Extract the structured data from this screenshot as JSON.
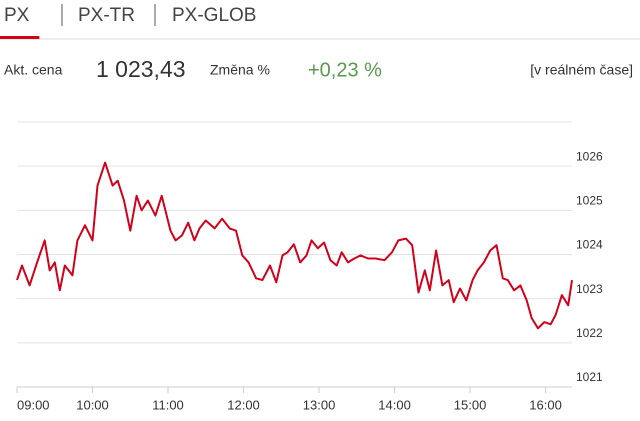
{
  "tabs": [
    "PX",
    "PX-TR",
    "PX-GLOB"
  ],
  "active_tab": 0,
  "quote": {
    "price_label": "Akt. cena",
    "price": "1 023,43",
    "change_label": "Změna %",
    "change": "+0,23 %",
    "status": "[v reálném čase]"
  },
  "chart_data": {
    "type": "line",
    "x": [
      "09:00",
      "09:04",
      "09:10",
      "09:16",
      "09:22",
      "09:26",
      "09:30",
      "09:34",
      "09:38",
      "09:44",
      "09:48",
      "09:54",
      "10:00",
      "10:04",
      "10:10",
      "10:16",
      "10:20",
      "10:25",
      "10:30",
      "10:35",
      "10:39",
      "10:44",
      "10:50",
      "10:55",
      "11:02",
      "11:06",
      "11:11",
      "11:16",
      "11:21",
      "11:25",
      "11:30",
      "11:37",
      "11:43",
      "11:49",
      "11:54",
      "11:59",
      "12:04",
      "12:10",
      "12:15",
      "12:21",
      "12:26",
      "12:31",
      "12:35",
      "12:40",
      "12:45",
      "12:50",
      "12:54",
      "12:59",
      "13:04",
      "13:09",
      "13:14",
      "13:18",
      "13:23",
      "13:28",
      "13:33",
      "13:39",
      "13:45",
      "13:52",
      "13:58",
      "14:03",
      "14:09",
      "14:14",
      "14:19",
      "14:24",
      "14:28",
      "14:33",
      "14:38",
      "14:43",
      "14:47",
      "14:52",
      "14:57",
      "15:02",
      "15:06",
      "15:11",
      "15:16",
      "15:21",
      "15:26",
      "15:30",
      "15:35",
      "15:40",
      "15:45",
      "15:49",
      "15:54",
      "15:59",
      "16:04",
      "16:08",
      "16:13",
      "16:18",
      "16:21"
    ],
    "series": [
      {
        "color": "#d0021b",
        "values": [
          1023.42,
          1023.75,
          1023.3,
          1023.82,
          1024.32,
          1023.64,
          1023.82,
          1023.19,
          1023.75,
          1023.53,
          1024.32,
          1024.66,
          1024.32,
          1025.56,
          1026.08,
          1025.56,
          1025.67,
          1025.22,
          1024.54,
          1025.33,
          1025.0,
          1025.22,
          1024.88,
          1025.33,
          1024.54,
          1024.32,
          1024.43,
          1024.72,
          1024.32,
          1024.59,
          1024.77,
          1024.59,
          1024.81,
          1024.59,
          1024.54,
          1023.98,
          1023.82,
          1023.46,
          1023.42,
          1023.75,
          1023.37,
          1023.98,
          1024.05,
          1024.23,
          1023.82,
          1023.98,
          1024.32,
          1024.14,
          1024.27,
          1023.87,
          1023.75,
          1024.05,
          1023.82,
          1023.91,
          1023.98,
          1023.91,
          1023.91,
          1023.87,
          1024.05,
          1024.32,
          1024.36,
          1024.21,
          1023.14,
          1023.64,
          1023.19,
          1024.09,
          1023.3,
          1023.42,
          1022.92,
          1023.23,
          1022.96,
          1023.42,
          1023.64,
          1023.82,
          1024.09,
          1024.21,
          1023.46,
          1023.42,
          1023.19,
          1023.3,
          1022.96,
          1022.56,
          1022.33,
          1022.47,
          1022.42,
          1022.63,
          1023.08,
          1022.85,
          1023.42
        ]
      }
    ],
    "xlim": [
      "09:00",
      "16:21"
    ],
    "xticks": [
      "09:00",
      "10:00",
      "11:00",
      "12:00",
      "13:00",
      "14:00",
      "15:00",
      "16:00"
    ],
    "ylim": [
      1021,
      1027
    ],
    "yticks": [
      1021,
      1022,
      1023,
      1024,
      1025,
      1026
    ],
    "grid": true
  }
}
